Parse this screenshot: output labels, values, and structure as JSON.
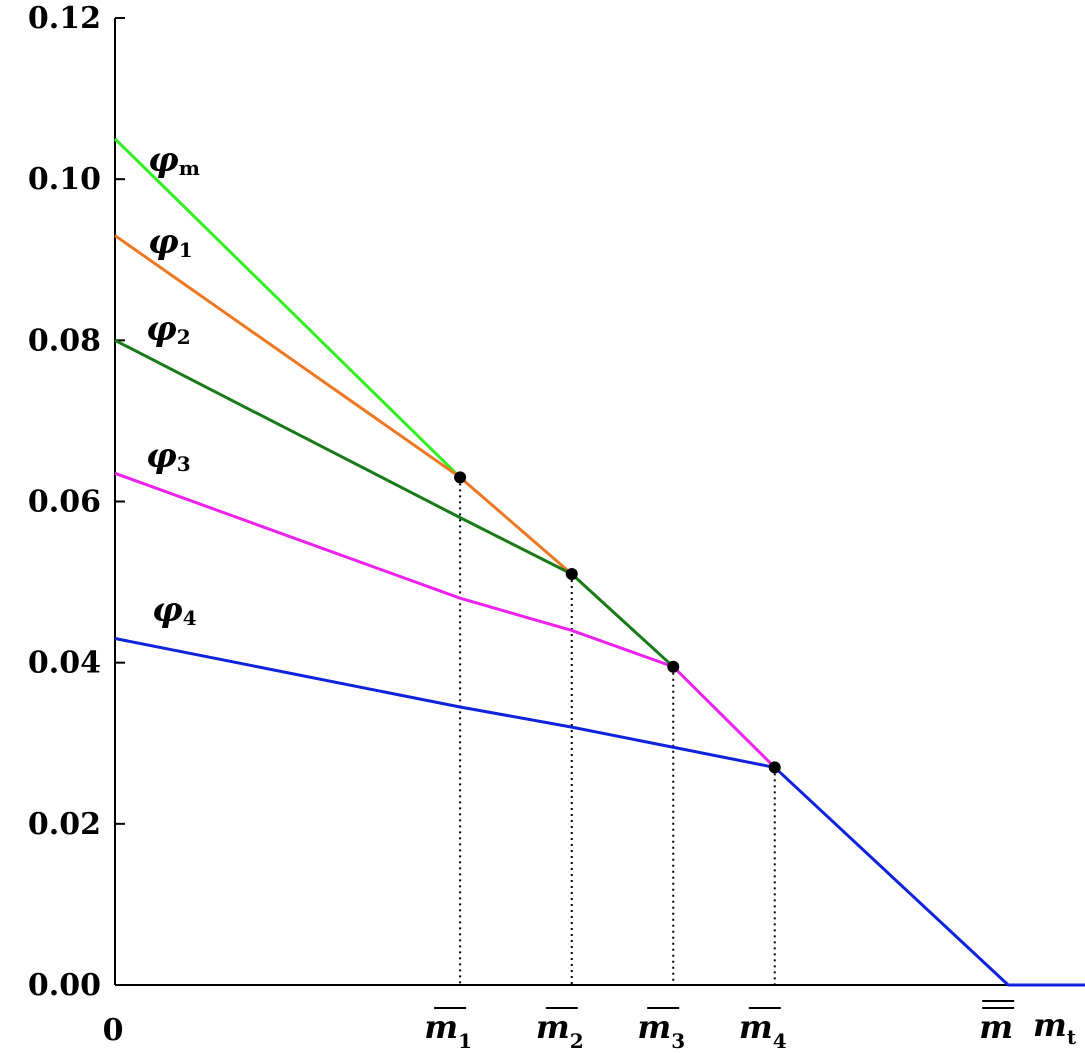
{
  "chart_data": {
    "type": "line",
    "title": "",
    "xlabel": "m",
    "xlabel_subscript": "t",
    "ylabel": "",
    "ylim": [
      0,
      0.12
    ],
    "yticks": [
      "0.00",
      "0.02",
      "0.04",
      "0.06",
      "0.08",
      "0.10",
      "0.12"
    ],
    "x_origin_label": "0",
    "grid": false,
    "legend": "none",
    "x_markers": [
      {
        "name": "m1",
        "text": "m",
        "subscript": "1",
        "bars": 1,
        "x": 0.34,
        "y": 0.063
      },
      {
        "name": "m2",
        "text": "m",
        "subscript": "2",
        "bars": 1,
        "x": 0.45,
        "y": 0.051
      },
      {
        "name": "m3",
        "text": "m",
        "subscript": "3",
        "bars": 1,
        "x": 0.55,
        "y": 0.0395
      },
      {
        "name": "m4",
        "text": "m",
        "subscript": "4",
        "bars": 1,
        "x": 0.65,
        "y": 0.027
      },
      {
        "name": "mbarbar",
        "text": "m",
        "subscript": "",
        "bars": 2,
        "x": 0.88,
        "y": 0.0
      }
    ],
    "series": [
      {
        "name": "phi-m",
        "label": "φ",
        "subscript": "m",
        "color": "#33ee22",
        "x": [
          0,
          0.34
        ],
        "y": [
          0.105,
          0.063
        ]
      },
      {
        "name": "phi-1",
        "label": "φ",
        "subscript": "1",
        "color": "#ee7722",
        "x": [
          0,
          0.34,
          0.45
        ],
        "y": [
          0.093,
          0.063,
          0.051
        ]
      },
      {
        "name": "phi-2",
        "label": "φ",
        "subscript": "2",
        "color": "#1a7a1a",
        "x": [
          0,
          0.34,
          0.45,
          0.55
        ],
        "y": [
          0.08,
          0.058,
          0.051,
          0.0395
        ]
      },
      {
        "name": "phi-3",
        "label": "φ",
        "subscript": "3",
        "color": "#ee22ee",
        "x": [
          0,
          0.34,
          0.45,
          0.55,
          0.65
        ],
        "y": [
          0.0635,
          0.048,
          0.044,
          0.0395,
          0.027
        ]
      },
      {
        "name": "phi-4",
        "label": "φ",
        "subscript": "4",
        "color": "#1122dd",
        "x": [
          0,
          0.34,
          0.45,
          0.55,
          0.65,
          0.88,
          1.0
        ],
        "y": [
          0.043,
          0.0345,
          0.032,
          0.0295,
          0.027,
          0.0,
          0.0
        ]
      }
    ]
  }
}
